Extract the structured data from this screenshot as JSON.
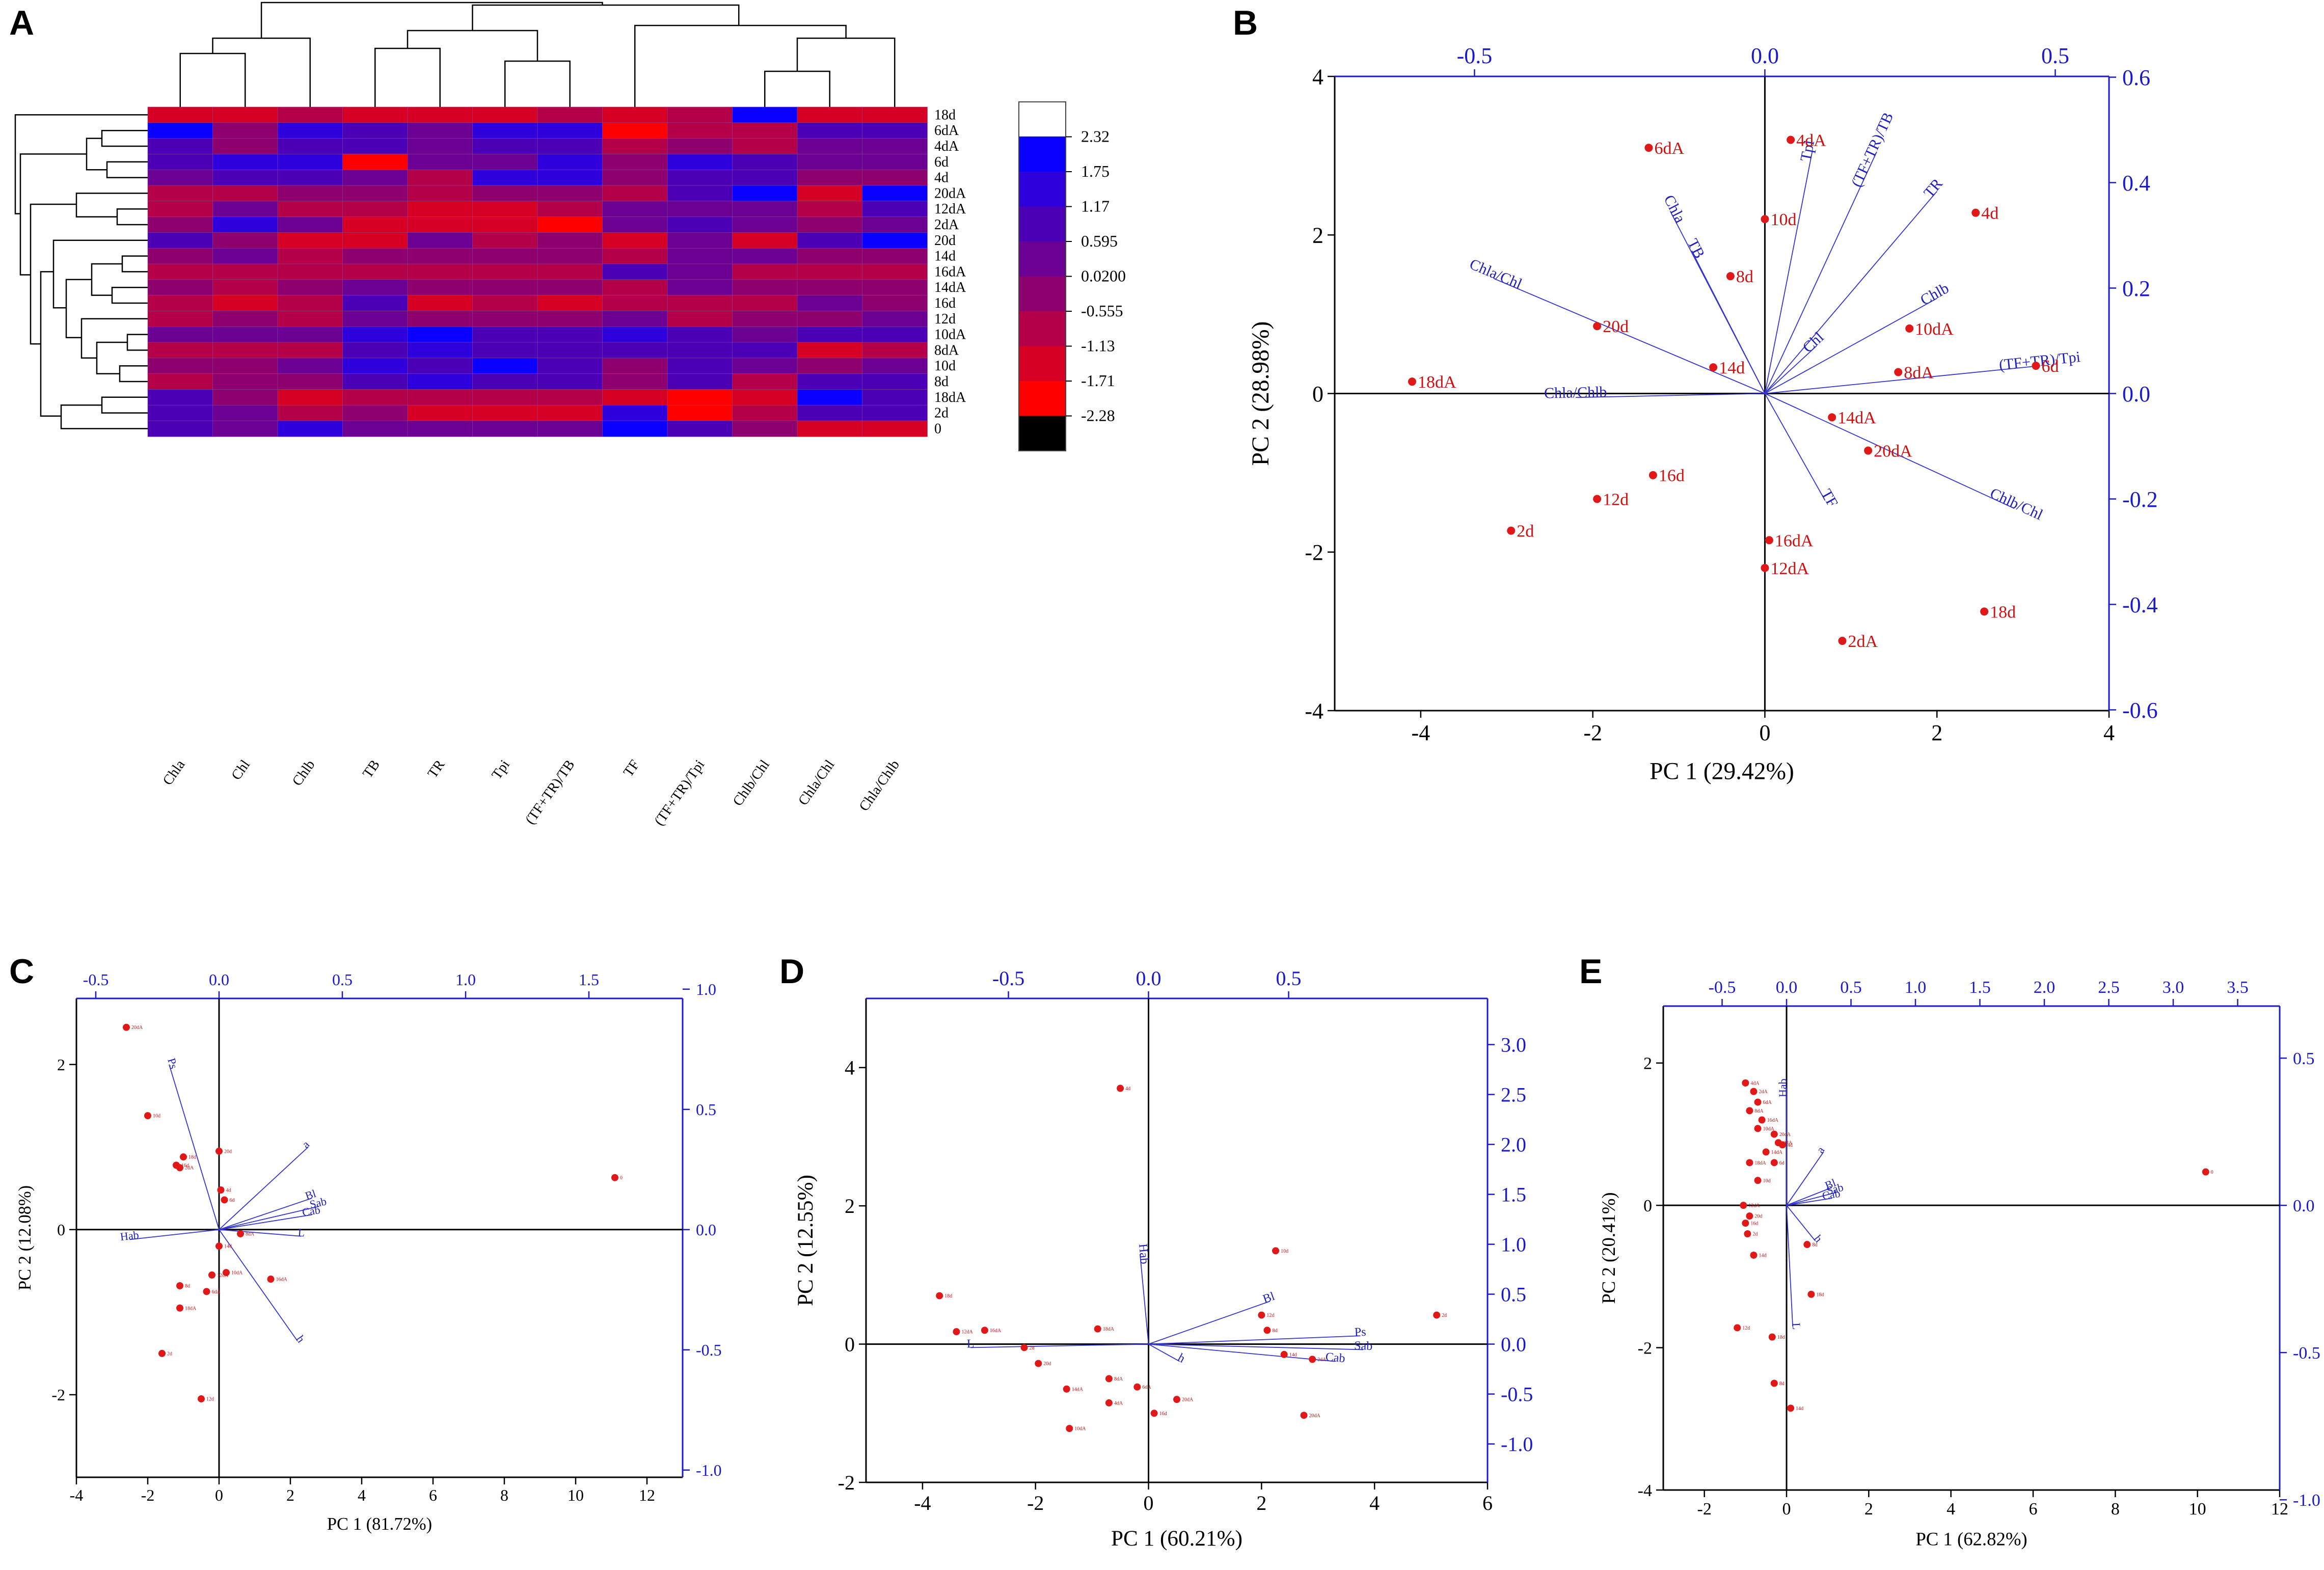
{
  "panel_labels": [
    "A",
    "B",
    "C",
    "D",
    "E"
  ],
  "chart_data": [
    {
      "panel": "A",
      "type": "heatmap",
      "columns": [
        "Chla",
        "Chl",
        "Chlb",
        "TB",
        "TR",
        "Tpi",
        "(TF+TR)/TB",
        "TF",
        "(TF+TR)/Tpi",
        "Chlb/Chl",
        "Chla/Chl",
        "Chla/Chlb"
      ],
      "rows": [
        "18d",
        "6dA",
        "4dA",
        "6d",
        "4d",
        "20dA",
        "12dA",
        "2dA",
        "20d",
        "14d",
        "16dA",
        "14dA",
        "16d",
        "12d",
        "10dA",
        "8dA",
        "10d",
        "8d",
        "18dA",
        "2d",
        "0"
      ],
      "values": [
        [
          -1.7,
          -1.3,
          -0.8,
          -1.3,
          -1.2,
          -1.2,
          -1.0,
          -1.2,
          -0.9,
          1.9,
          -1.7,
          -1.3
        ],
        [
          1.8,
          -0.5,
          1.3,
          0.6,
          0.3,
          1.2,
          1.2,
          -1.9,
          -1.0,
          -0.8,
          0.9,
          0.8
        ],
        [
          0.8,
          -0.2,
          1.0,
          0.9,
          0.4,
          0.6,
          1.0,
          -0.9,
          -0.3,
          -0.8,
          0.4,
          0.5
        ],
        [
          0.7,
          1.2,
          1.5,
          -2.0,
          0.3,
          0.5,
          1.3,
          -0.5,
          1.3,
          1.0,
          0.4,
          0.3
        ],
        [
          0.5,
          1.0,
          0.8,
          0.4,
          -1.0,
          1.2,
          1.2,
          -0.5,
          1.0,
          0.6,
          -0.2,
          -0.4
        ],
        [
          -1.0,
          -0.8,
          -0.4,
          -0.4,
          -0.6,
          -0.4,
          -0.4,
          -0.9,
          0.6,
          1.9,
          -1.5,
          1.9
        ],
        [
          -0.7,
          0.4,
          -0.7,
          -1.0,
          -1.2,
          -1.2,
          -1.0,
          0.3,
          0.4,
          0.5,
          -0.8,
          0.9
        ],
        [
          -0.5,
          1.3,
          0.5,
          -1.5,
          -1.4,
          -1.4,
          -1.8,
          0.2,
          0.6,
          0.5,
          -0.4,
          0.3
        ],
        [
          0.8,
          -0.3,
          -1.2,
          -1.4,
          0.2,
          -0.9,
          -0.4,
          -1.2,
          0.1,
          -1.6,
          0.9,
          2.0
        ],
        [
          0.0,
          0.2,
          -0.7,
          -0.4,
          -0.3,
          -0.3,
          -0.3,
          -1.1,
          0.3,
          0.3,
          -0.2,
          -0.3
        ],
        [
          -1.0,
          -0.8,
          -0.9,
          -0.8,
          -0.8,
          -0.9,
          -0.6,
          1.1,
          0.4,
          -0.7,
          -0.9,
          -1.1
        ],
        [
          -0.2,
          -0.6,
          -0.3,
          0.3,
          -0.5,
          -0.3,
          -0.3,
          -0.8,
          0.3,
          -0.5,
          -0.3,
          -0.4
        ],
        [
          -1.1,
          -1.2,
          -1.1,
          0.7,
          -1.2,
          -0.8,
          -1.2,
          -1.1,
          -1.0,
          -0.6,
          0.3,
          0.0
        ],
        [
          -0.6,
          -0.5,
          -1.1,
          0.3,
          -0.3,
          -0.4,
          -0.5,
          0.4,
          -0.6,
          0.0,
          0.0,
          0.1
        ],
        [
          0.3,
          0.3,
          0.3,
          1.4,
          1.9,
          1.1,
          0.9,
          1.2,
          0.7,
          0.3,
          0.6,
          0.8
        ],
        [
          -1.0,
          -0.6,
          -1.1,
          0.6,
          1.3,
          0.9,
          0.6,
          0.9,
          0.9,
          1.1,
          -1.2,
          -0.8
        ],
        [
          -0.3,
          -0.2,
          0.2,
          1.4,
          1.0,
          1.8,
          0.9,
          -0.5,
          0.8,
          0.3,
          0.0,
          0.4
        ],
        [
          -0.6,
          -0.5,
          0.0,
          1.1,
          1.3,
          0.8,
          0.9,
          -0.4,
          0.7,
          -1.1,
          0.9,
          0.8
        ],
        [
          0.8,
          -0.2,
          -1.6,
          -0.6,
          -0.8,
          -1.0,
          -1.1,
          -1.2,
          -1.9,
          -1.4,
          2.0,
          0.7
        ],
        [
          0.9,
          0.5,
          -0.6,
          0.0,
          -1.5,
          -1.5,
          -1.5,
          1.5,
          -1.9,
          -0.7,
          1.0,
          0.8
        ],
        [
          0.7,
          0.5,
          1.5,
          0.3,
          0.3,
          0.3,
          0.3,
          1.8,
          0.6,
          -0.5,
          -1.4,
          -1.2
        ]
      ],
      "legend_ticks": [
        "2.32",
        "1.75",
        "1.17",
        "0.595",
        "0.0200",
        "-0.555",
        "-1.13",
        "-1.71",
        "-2.28"
      ],
      "legend_values": [
        2.32,
        1.75,
        1.17,
        0.595,
        0.02,
        -0.555,
        -1.13,
        -1.71,
        -2.28
      ],
      "legend_colors": [
        "#ffffff",
        "#0a00ff",
        "#2e00db",
        "#4b00b6",
        "#6c0092",
        "#8e006e",
        "#b30049",
        "#d60025",
        "#ff0000",
        "#000000"
      ]
    },
    {
      "panel": "B",
      "type": "scatter",
      "title": "",
      "xlabel": "PC 1 (29.42%)",
      "ylabel": "PC 2 (28.98%)",
      "xlim": [
        -5,
        4
      ],
      "ylim": [
        -4,
        4
      ],
      "xticks": [
        -4,
        -2,
        0,
        2,
        4
      ],
      "yticks": [
        -4,
        -2,
        0,
        2,
        4
      ],
      "top_ticks": [
        "-0.5",
        "0.0",
        "0.5"
      ],
      "right_ticks": [
        "-0.6",
        "-0.4",
        "-0.2",
        "0.0",
        "0.2",
        "0.4",
        "0.6"
      ],
      "points": [
        {
          "label": "18dA",
          "x": -4.1,
          "y": 0.15
        },
        {
          "label": "6dA",
          "x": -1.35,
          "y": 3.1
        },
        {
          "label": "4dA",
          "x": 0.3,
          "y": 3.2
        },
        {
          "label": "10d",
          "x": 0.0,
          "y": 2.2
        },
        {
          "label": "4d",
          "x": 2.45,
          "y": 2.28
        },
        {
          "label": "8d",
          "x": -0.4,
          "y": 1.48
        },
        {
          "label": "20d",
          "x": -1.95,
          "y": 0.85
        },
        {
          "label": "14d",
          "x": -0.6,
          "y": 0.33
        },
        {
          "label": "10dA",
          "x": 1.68,
          "y": 0.82
        },
        {
          "label": "8dA",
          "x": 1.55,
          "y": 0.27
        },
        {
          "label": "6d",
          "x": 3.15,
          "y": 0.35
        },
        {
          "label": "14dA",
          "x": 0.78,
          "y": -0.3
        },
        {
          "label": "20dA",
          "x": 1.2,
          "y": -0.72
        },
        {
          "label": "16d",
          "x": -1.3,
          "y": -1.03
        },
        {
          "label": "12d",
          "x": -1.95,
          "y": -1.33
        },
        {
          "label": "2d",
          "x": -2.95,
          "y": -1.73
        },
        {
          "label": "16dA",
          "x": 0.05,
          "y": -1.85
        },
        {
          "label": "12dA",
          "x": 0.0,
          "y": -2.2
        },
        {
          "label": "18d",
          "x": 2.55,
          "y": -2.75
        },
        {
          "label": "2dA",
          "x": 0.9,
          "y": -3.12
        }
      ],
      "vectors": [
        {
          "label": "Tpi",
          "x": 0.55,
          "y": 3.05
        },
        {
          "label": "(TF+TR)/TB",
          "x": 1.3,
          "y": 3.05
        },
        {
          "label": "TR",
          "x": 2.0,
          "y": 2.55
        },
        {
          "label": "Chla",
          "x": -1.1,
          "y": 2.3
        },
        {
          "label": "TB",
          "x": -0.85,
          "y": 1.8
        },
        {
          "label": "Chla/Chl",
          "x": -3.15,
          "y": 1.45
        },
        {
          "label": "Chlb",
          "x": 2.0,
          "y": 1.2
        },
        {
          "label": "Chl",
          "x": 0.6,
          "y": 0.6
        },
        {
          "label": "Chla/Chlb",
          "x": -2.2,
          "y": -0.05
        },
        {
          "label": "(TF+TR)/Tpi",
          "x": 3.2,
          "y": 0.35
        },
        {
          "label": "Chlb/Chl",
          "x": 2.9,
          "y": -1.45
        },
        {
          "label": "TF",
          "x": 0.7,
          "y": -1.35
        }
      ]
    },
    {
      "panel": "C",
      "type": "scatter",
      "title": "",
      "xlabel": "PC 1 (81.72%)",
      "ylabel": "PC 2 (12.08%)",
      "xlim": [
        -4,
        13
      ],
      "ylim": [
        -3,
        2.8
      ],
      "xticks": [
        -4,
        -2,
        0,
        2,
        4,
        6,
        8,
        10,
        12
      ],
      "yticks": [
        -2,
        0,
        2
      ],
      "top_ticks": [
        "-0.5",
        "0.0",
        "0.5",
        "1.0",
        "1.5"
      ],
      "right_ticks": [
        "1.0",
        "0.5",
        "0.0",
        "-0.5",
        "-1.0"
      ],
      "points": [
        {
          "label": "20dA",
          "x": -2.6,
          "y": 2.45
        },
        {
          "label": "10d",
          "x": -2.0,
          "y": 1.38
        },
        {
          "label": "18d",
          "x": -1.0,
          "y": 0.88
        },
        {
          "label": "20d",
          "x": 0.0,
          "y": 0.95
        },
        {
          "label": "16d",
          "x": -1.2,
          "y": 0.78
        },
        {
          "label": "2dA",
          "x": -1.1,
          "y": 0.75
        },
        {
          "label": "4d",
          "x": 0.05,
          "y": 0.48
        },
        {
          "label": "6d",
          "x": 0.15,
          "y": 0.36
        },
        {
          "label": "8dA",
          "x": 0.6,
          "y": -0.05
        },
        {
          "label": "14d",
          "x": 0.0,
          "y": -0.2
        },
        {
          "label": "10dA",
          "x": 0.2,
          "y": -0.52
        },
        {
          "label": "12dA",
          "x": -0.2,
          "y": -0.55
        },
        {
          "label": "16dA",
          "x": 1.45,
          "y": -0.6
        },
        {
          "label": "8d",
          "x": -1.1,
          "y": -0.68
        },
        {
          "label": "6dA",
          "x": -0.35,
          "y": -0.75
        },
        {
          "label": "18dA",
          "x": -1.1,
          "y": -0.95
        },
        {
          "label": "2d",
          "x": -1.6,
          "y": -1.5
        },
        {
          "label": "12d",
          "x": -0.5,
          "y": -2.05
        },
        {
          "label": "0",
          "x": 11.1,
          "y": 0.63
        }
      ],
      "vectors": [
        {
          "label": "Ps",
          "x": -1.4,
          "y": 2.0
        },
        {
          "label": "a",
          "x": 2.5,
          "y": 1.0
        },
        {
          "label": "Bl",
          "x": 2.6,
          "y": 0.38
        },
        {
          "label": "Sab",
          "x": 2.8,
          "y": 0.28
        },
        {
          "label": "Cab",
          "x": 2.6,
          "y": 0.18
        },
        {
          "label": "L",
          "x": 2.3,
          "y": -0.08
        },
        {
          "label": "Hab",
          "x": -2.5,
          "y": -0.12
        },
        {
          "label": "h",
          "x": 2.2,
          "y": -1.35
        }
      ]
    },
    {
      "panel": "D",
      "type": "scatter",
      "title": "",
      "xlabel": "PC 1 (60.21%)",
      "ylabel": "PC 2 (12.55%)",
      "xlim": [
        -5,
        6
      ],
      "ylim": [
        -2,
        5
      ],
      "xticks": [
        -4,
        -2,
        0,
        2,
        4,
        6
      ],
      "yticks": [
        -2,
        0,
        2,
        4
      ],
      "top_ticks": [
        "-0.5",
        "0.0",
        "0.5"
      ],
      "right_ticks": [
        "3.0",
        "2.5",
        "2.0",
        "1.5",
        "1.0",
        "0.5",
        "0.0",
        "-0.5",
        "-1.0"
      ],
      "points": [
        {
          "label": "4d",
          "x": -0.5,
          "y": 3.7
        },
        {
          "label": "10d",
          "x": 2.25,
          "y": 1.35
        },
        {
          "label": "2d",
          "x": 5.1,
          "y": 0.42
        },
        {
          "label": "12d",
          "x": 2.0,
          "y": 0.42
        },
        {
          "label": "8d",
          "x": 2.1,
          "y": 0.2
        },
        {
          "label": "18d",
          "x": -3.7,
          "y": 0.7
        },
        {
          "label": "12dA",
          "x": -3.4,
          "y": 0.18
        },
        {
          "label": "16dA",
          "x": -2.9,
          "y": 0.2
        },
        {
          "label": "18dA",
          "x": -0.9,
          "y": 0.22
        },
        {
          "label": "14d",
          "x": 2.4,
          "y": -0.15
        },
        {
          "label": "2dA",
          "x": 2.9,
          "y": -0.22
        },
        {
          "label": "2d2",
          "x": -2.2,
          "y": -0.05
        },
        {
          "label": "20d",
          "x": -1.95,
          "y": -0.28
        },
        {
          "label": "8dA",
          "x": -0.7,
          "y": -0.5
        },
        {
          "label": "6dA",
          "x": -0.2,
          "y": -0.62
        },
        {
          "label": "14dA",
          "x": -1.45,
          "y": -0.65
        },
        {
          "label": "4dA",
          "x": -0.7,
          "y": -0.85
        },
        {
          "label": "20dA",
          "x": 0.5,
          "y": -0.8
        },
        {
          "label": "16d",
          "x": 0.1,
          "y": -1.0
        },
        {
          "label": "10dA",
          "x": -1.4,
          "y": -1.22
        },
        {
          "label": "20dA2",
          "x": 2.75,
          "y": -1.03
        }
      ],
      "vectors": [
        {
          "label": "Hab",
          "x": -0.15,
          "y": 1.3
        },
        {
          "label": "Bl",
          "x": 2.15,
          "y": 0.62
        },
        {
          "label": "Ps",
          "x": 3.75,
          "y": 0.12
        },
        {
          "label": "Sab",
          "x": 3.8,
          "y": -0.08
        },
        {
          "label": "Cab",
          "x": 3.3,
          "y": -0.25
        },
        {
          "label": "h",
          "x": 0.55,
          "y": -0.25
        },
        {
          "label": "L",
          "x": -3.15,
          "y": -0.05
        }
      ]
    },
    {
      "panel": "E",
      "type": "scatter",
      "title": "",
      "xlabel": "PC 1 (62.82%)",
      "ylabel": "PC 2 (20.41%)",
      "xlim": [
        -3,
        12
      ],
      "ylim": [
        -4,
        2.8
      ],
      "xticks": [
        -2,
        0,
        2,
        4,
        6,
        8,
        10,
        12
      ],
      "yticks": [
        -4,
        -2,
        0,
        2
      ],
      "top_ticks": [
        "-0.5",
        "0.0",
        "0.5",
        "1.0",
        "1.5",
        "2.0",
        "2.5",
        "3.0",
        "3.5"
      ],
      "right_ticks": [
        "0.5",
        "0.0",
        "-0.5",
        "-1.0"
      ],
      "points": [
        {
          "label": "4dA",
          "x": -1.0,
          "y": 1.72
        },
        {
          "label": "2dA",
          "x": -0.8,
          "y": 1.6
        },
        {
          "label": "6dA",
          "x": -0.7,
          "y": 1.45
        },
        {
          "label": "8dA",
          "x": -0.9,
          "y": 1.33
        },
        {
          "label": "16dA",
          "x": -0.6,
          "y": 1.2
        },
        {
          "label": "10dA",
          "x": -0.7,
          "y": 1.08
        },
        {
          "label": "20dA",
          "x": -0.3,
          "y": 1.0
        },
        {
          "label": "14dA",
          "x": -0.5,
          "y": 0.75
        },
        {
          "label": "18dA",
          "x": -0.9,
          "y": 0.6
        },
        {
          "label": "0dA",
          "x": -0.2,
          "y": 0.88
        },
        {
          "label": "4d",
          "x": -0.1,
          "y": 0.85
        },
        {
          "label": "10d",
          "x": -0.7,
          "y": 0.35
        },
        {
          "label": "6d",
          "x": -0.3,
          "y": 0.6
        },
        {
          "label": "12dA",
          "x": -1.05,
          "y": 0.0
        },
        {
          "label": "20d",
          "x": -0.9,
          "y": -0.15
        },
        {
          "label": "16d",
          "x": -1.0,
          "y": -0.25
        },
        {
          "label": "2d",
          "x": -0.95,
          "y": -0.4
        },
        {
          "label": "14d",
          "x": -0.8,
          "y": -0.7
        },
        {
          "label": "8d",
          "x": 0.5,
          "y": -0.55
        },
        {
          "label": "18d",
          "x": 0.6,
          "y": -1.25
        },
        {
          "label": "12d",
          "x": -1.2,
          "y": -1.72
        },
        {
          "label": "18d2",
          "x": -0.35,
          "y": -1.85
        },
        {
          "label": "8d2",
          "x": -0.3,
          "y": -2.5
        },
        {
          "label": "14d2",
          "x": 0.1,
          "y": -2.85
        },
        {
          "label": "0",
          "x": 10.2,
          "y": 0.47
        }
      ],
      "vectors": [
        {
          "label": "Hab",
          "x": 0.0,
          "y": 1.65
        },
        {
          "label": "a",
          "x": 0.9,
          "y": 0.75
        },
        {
          "label": "Bl",
          "x": 1.1,
          "y": 0.25
        },
        {
          "label": "Sab",
          "x": 1.2,
          "y": 0.18
        },
        {
          "label": "Cab",
          "x": 1.1,
          "y": 0.1
        },
        {
          "label": "h",
          "x": 0.7,
          "y": -0.5
        },
        {
          "label": "L",
          "x": 0.15,
          "y": -1.7
        }
      ]
    }
  ]
}
